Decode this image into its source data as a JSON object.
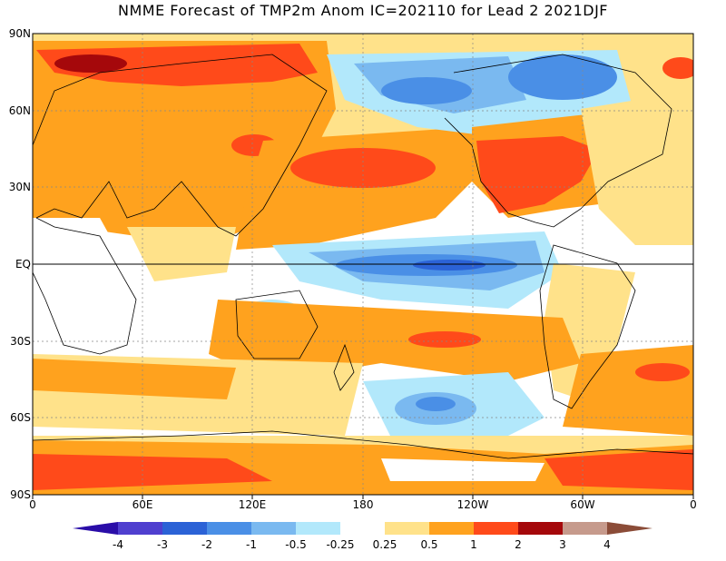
{
  "title": "NMME Forecast of TMP2m Anom IC=202110 for Lead 2 2021DJF",
  "map": {
    "lat_labels": [
      "90N",
      "60N",
      "30N",
      "EQ",
      "30S",
      "60S",
      "90S"
    ],
    "lon_labels": [
      "0",
      "60E",
      "120E",
      "180",
      "120W",
      "60W",
      "0"
    ]
  },
  "colorbar": {
    "labels": [
      "-4",
      "-3",
      "-2",
      "-1",
      "-0.5",
      "-0.25",
      "0.25",
      "0.5",
      "1",
      "2",
      "3",
      "4"
    ],
    "colors": [
      "#2a0da8",
      "#4f3fcf",
      "#2b62d6",
      "#4a8fe6",
      "#7ab9f0",
      "#b2e8fb",
      "#ffffff",
      "#ffe28a",
      "#ffa21e",
      "#ff4a1a",
      "#a5080b",
      "#c69a8c",
      "#8b4c38"
    ]
  },
  "anomaly_regions": [
    {
      "name": "Northern Eurasia warm",
      "level": "2"
    },
    {
      "name": "Eastern North America warm",
      "level": "2"
    },
    {
      "name": "Alaska and Canada cool",
      "level": "-1"
    },
    {
      "name": "Equatorial Pacific cool",
      "level": "-2"
    },
    {
      "name": "North Pacific warm",
      "level": "1"
    },
    {
      "name": "South Pacific cool",
      "level": "-1"
    },
    {
      "name": "Antarctica warm",
      "level": "1"
    }
  ]
}
